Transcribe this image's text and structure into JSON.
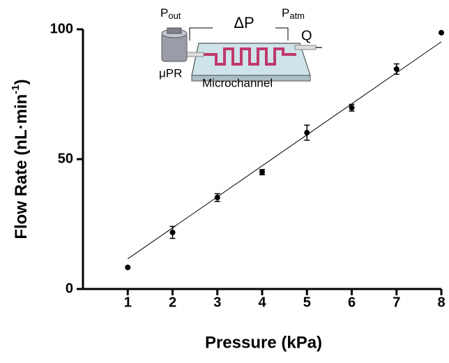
{
  "chart_data": {
    "type": "scatter",
    "xlabel": "Pressure (kPa)",
    "ylabel": {
      "main": "Flow Rate (nL·min",
      "sup": "-1",
      "end": ")"
    },
    "x": [
      1,
      2,
      3,
      4,
      5,
      6,
      7,
      8
    ],
    "values": [
      8.3,
      21.8,
      35.2,
      45,
      60.2,
      69.8,
      84.7,
      98.7
    ],
    "errors": [
      null,
      2.3,
      1.5,
      1,
      2.9,
      1.3,
      2,
      null
    ],
    "color": "#000000",
    "fit": {
      "x": [
        1,
        8
      ],
      "values": [
        11.6,
        95.2
      ]
    },
    "xlim": [
      0,
      8
    ],
    "xticks": [
      1,
      2,
      3,
      4,
      5,
      6,
      7,
      8
    ],
    "ylim": [
      0,
      100
    ],
    "yticks": [
      0,
      50,
      100
    ],
    "inset": {
      "p_out": {
        "main": "P",
        "sub": "out"
      },
      "delta_p": "ΔP",
      "p_atm": {
        "main": "P",
        "sub": "atm"
      },
      "flow": "Q",
      "pump": "μPR",
      "channel": "Microchannel"
    }
  }
}
